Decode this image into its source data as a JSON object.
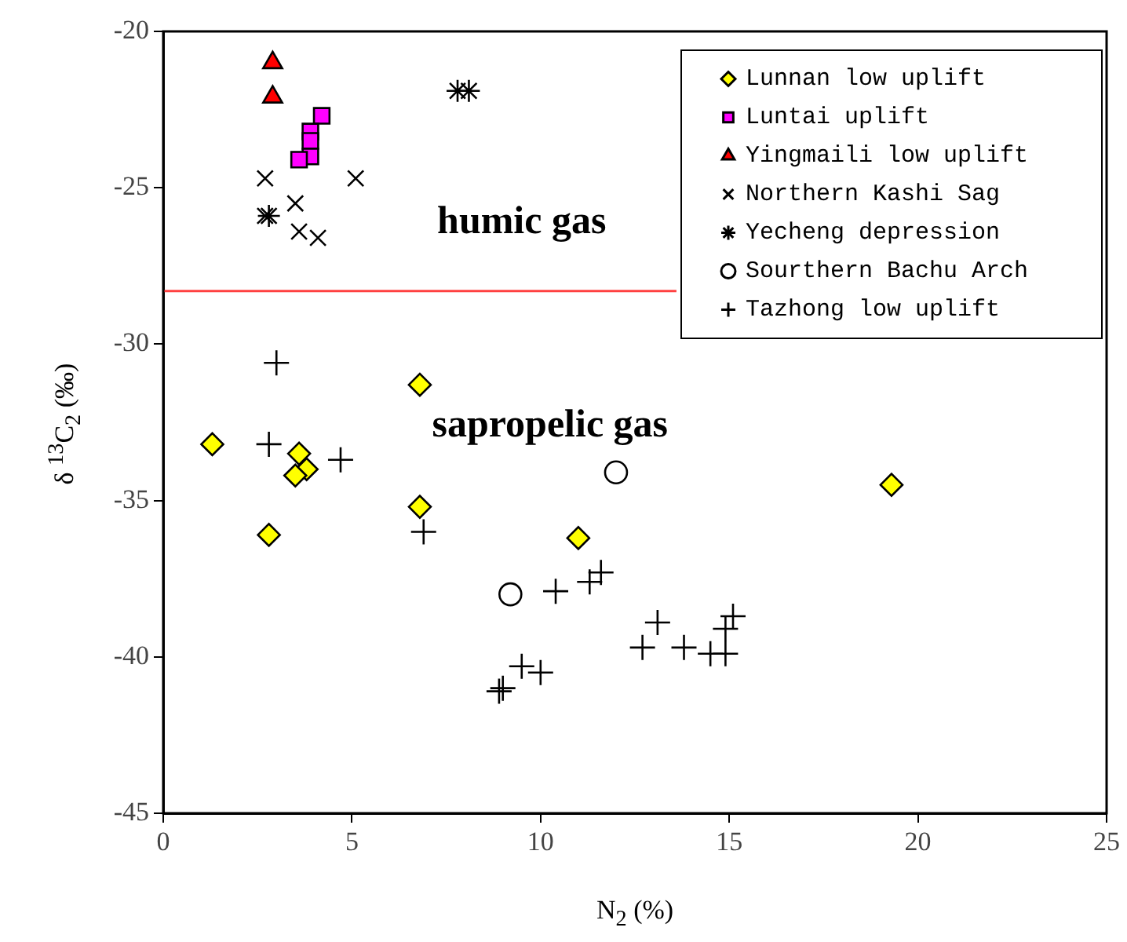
{
  "chart_data": {
    "type": "scatter",
    "xlabel": "N$_{2}$ (%)",
    "ylabel": "δ $^{13}$C$_{2}$ (‰)",
    "xlim": [
      0,
      25
    ],
    "xticks": [
      0,
      5,
      10,
      15,
      20,
      25
    ],
    "ylim": [
      -45,
      -20
    ],
    "yticks": [
      -45,
      -40,
      -35,
      -30,
      -25,
      -20
    ],
    "grid": false,
    "legend": "top right",
    "annotations": [
      "humic gas",
      "sapropelic gas"
    ],
    "series": [
      {
        "name": "Lunnan low uplift",
        "color": "#ffff00",
        "marker": "diamond",
        "x": [
          1.3,
          2.8,
          3.6,
          3.8,
          3.5,
          6.8,
          6.8,
          11,
          19.3
        ],
        "values": [
          -33.2,
          -36.1,
          -33.5,
          -34,
          -34.2,
          -31.3,
          -35.2,
          -36.2,
          -34.5
        ]
      },
      {
        "name": "Luntai uplift",
        "color": "#ff00ff",
        "marker": "square",
        "x": [
          4.2,
          3.9,
          3.9,
          3.9,
          3.6
        ],
        "values": [
          -22.7,
          -23.2,
          -23.5,
          -24,
          -24.1
        ]
      },
      {
        "name": "Yingmaili low uplift",
        "color": "#ff0000",
        "marker": "triangle",
        "x": [
          2.9,
          2.9
        ],
        "values": [
          -21,
          -22.1
        ]
      },
      {
        "name": "Northern Kashi Sag",
        "color": "#000000",
        "marker": "cross",
        "x": [
          2.7,
          5.1,
          3.5,
          2.7,
          3.6,
          4.1
        ],
        "values": [
          -24.7,
          -24.7,
          -25.5,
          -25.9,
          -26.4,
          -26.6
        ]
      },
      {
        "name": "Yecheng depression",
        "color": "#000000",
        "x": [
          7.8,
          8.1,
          2.8
        ],
        "values": [
          -21.9,
          -21.9,
          -25.9
        ]
      },
      {
        "name": "Sourthern Bachu Arch",
        "color": "#000000",
        "marker": "circle",
        "x": [
          12,
          9.2
        ],
        "values": [
          -34.1,
          -38
        ]
      },
      {
        "name": "Tazhong low uplift",
        "color": "#000000",
        "marker": "plus",
        "x": [
          3,
          2.8,
          4.7,
          6.9,
          10.4,
          11.3,
          11.6,
          13.1,
          12.7,
          9.5,
          10,
          9,
          8.9,
          13.8,
          14.5,
          14.9,
          14.9,
          15.1
        ],
        "values": [
          -30.6,
          -33.2,
          -33.7,
          -36,
          -37.9,
          -37.6,
          -37.3,
          -38.9,
          -39.7,
          -40.3,
          -40.5,
          -41,
          -41.1,
          -39.7,
          -39.9,
          -39.9,
          -39.1,
          -38.7
        ]
      },
      {
        "type": "line",
        "color": "#ff4040",
        "marker": "none",
        "x": [
          0,
          13.6
        ],
        "values": [
          -28.3,
          -28.3
        ]
      }
    ]
  }
}
